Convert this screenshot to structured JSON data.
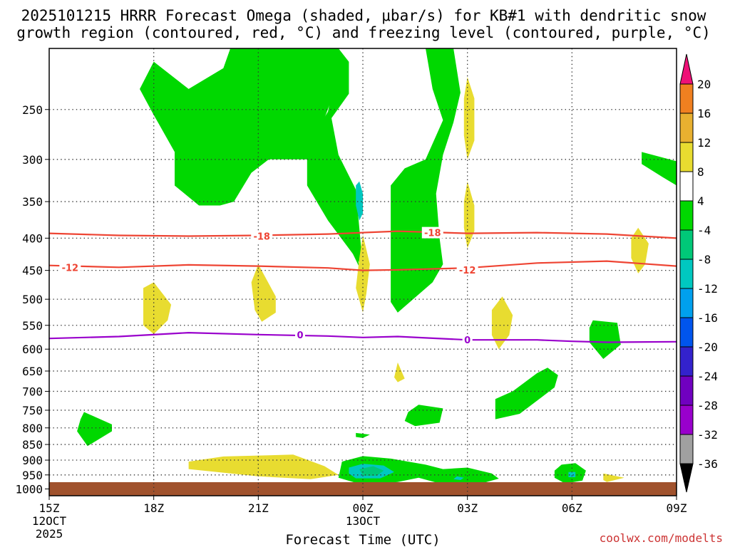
{
  "chart_data": {
    "type": "heatmap",
    "title_line1": "2025101215 HRRR Forecast Omega (shaded, μbar/s) for KB#1 with dendritic snow",
    "title_line2": "growth region (contoured, red, °C) and freezing level (contoured, purple, °C)",
    "xlabel": "Forecast Time (UTC)",
    "credit": "coolwx.com/modelts",
    "x_ticks": [
      {
        "hour": 0,
        "label": "15Z",
        "sub": "12OCT",
        "sub2": "2025"
      },
      {
        "hour": 3,
        "label": "18Z"
      },
      {
        "hour": 6,
        "label": "21Z"
      },
      {
        "hour": 9,
        "label": "00Z",
        "sub": "13OCT"
      },
      {
        "hour": 12,
        "label": "03Z"
      },
      {
        "hour": 15,
        "label": "06Z"
      },
      {
        "hour": 18,
        "label": "09Z"
      }
    ],
    "xlim": [
      0,
      18
    ],
    "ylim": [
      1025,
      200
    ],
    "y_scale": "log",
    "y_ticks": [
      250,
      300,
      350,
      400,
      450,
      500,
      550,
      600,
      650,
      700,
      750,
      800,
      850,
      900,
      950,
      1000
    ],
    "grid": true,
    "colorbar": {
      "levels": [
        -36,
        -32,
        -28,
        -24,
        -20,
        -16,
        -12,
        -8,
        -4,
        4,
        8,
        12,
        16,
        20
      ],
      "colors": [
        "#a0a0a0",
        "#9900cc",
        "#7000c0",
        "#3322cc",
        "#0055ee",
        "#00a0ee",
        "#00c8c0",
        "#00c878",
        "#00d800",
        "#ffffff",
        "#e8dc30",
        "#e8b030",
        "#f08020",
        "#f04040"
      ],
      "under_color": "#000000",
      "over_color": "#ee1177"
    },
    "contours": [
      {
        "name": "dendritic-18",
        "label": "-18",
        "color": "#ee4433",
        "points": [
          [
            0,
            393
          ],
          [
            2,
            396
          ],
          [
            4,
            397
          ],
          [
            6,
            396
          ],
          [
            8,
            394
          ],
          [
            10,
            390
          ],
          [
            12,
            393
          ],
          [
            14,
            392
          ],
          [
            16,
            394
          ],
          [
            18,
            400
          ]
        ],
        "label_at": [
          [
            6.1,
            397
          ],
          [
            11.0,
            392
          ]
        ]
      },
      {
        "name": "dendritic-12",
        "label": "-12",
        "color": "#ee4433",
        "points": [
          [
            0,
            442
          ],
          [
            2,
            445
          ],
          [
            4,
            441
          ],
          [
            6,
            443
          ],
          [
            8,
            446
          ],
          [
            9,
            450
          ],
          [
            10,
            449
          ],
          [
            12,
            446
          ],
          [
            14,
            438
          ],
          [
            16,
            435
          ],
          [
            18,
            443
          ]
        ],
        "label_at": [
          [
            0.6,
            445
          ],
          [
            12.0,
            449
          ]
        ]
      },
      {
        "name": "freezing-0",
        "label": "0",
        "color": "#9900cc",
        "points": [
          [
            0,
            577
          ],
          [
            2,
            573
          ],
          [
            4,
            565
          ],
          [
            6,
            569
          ],
          [
            8,
            572
          ],
          [
            9,
            575
          ],
          [
            10,
            573
          ],
          [
            12,
            580
          ],
          [
            14,
            580
          ],
          [
            15,
            583
          ],
          [
            16,
            585
          ],
          [
            18,
            584
          ]
        ],
        "label_at": [
          [
            7.2,
            569
          ],
          [
            12.0,
            580
          ]
        ]
      }
    ],
    "regions": [
      {
        "name": "omega-region",
        "color": "#00d800",
        "points": [
          [
            2.6,
            232
          ],
          [
            3.0,
            210
          ],
          [
            4.0,
            232
          ],
          [
            5.0,
            215
          ],
          [
            5.2,
            200
          ],
          [
            7.3,
            200
          ],
          [
            8.2,
            220
          ],
          [
            8.0,
            252
          ],
          [
            7.4,
            285
          ],
          [
            7.4,
            330
          ],
          [
            8.0,
            375
          ],
          [
            9.0,
            445
          ],
          [
            8.8,
            335
          ],
          [
            8.3,
            295
          ],
          [
            8.1,
            258
          ],
          [
            8.6,
            236
          ],
          [
            8.6,
            210
          ],
          [
            8.3,
            200
          ],
          [
            6.5,
            200
          ],
          [
            6.5,
            235
          ],
          [
            5.8,
            295
          ],
          [
            5.6,
            305
          ],
          [
            4.3,
            355
          ],
          [
            3.6,
            330
          ],
          [
            3.6,
            290
          ],
          [
            3.0,
            255
          ]
        ]
      },
      {
        "name": "omega-region",
        "color": "#00d800",
        "points": [
          [
            2.6,
            232
          ],
          [
            3.0,
            210
          ],
          [
            4.0,
            232
          ],
          [
            5.0,
            215
          ],
          [
            5.2,
            200
          ],
          [
            8.3,
            200
          ],
          [
            8.3,
            225
          ],
          [
            7.9,
            258
          ],
          [
            7.6,
            290
          ],
          [
            7.7,
            332
          ],
          [
            8.3,
            380
          ],
          [
            8.9,
            445
          ],
          [
            8.6,
            360
          ],
          [
            8.0,
            312
          ],
          [
            7.4,
            300
          ],
          [
            6.3,
            300
          ],
          [
            5.8,
            315
          ],
          [
            5.3,
            350
          ],
          [
            4.9,
            355
          ],
          [
            4.3,
            355
          ],
          [
            3.6,
            330
          ],
          [
            3.6,
            292
          ],
          [
            3.0,
            255
          ]
        ]
      },
      {
        "name": "omega-region",
        "color": "#00d800",
        "points": [
          [
            10.8,
            200
          ],
          [
            11.6,
            200
          ],
          [
            11.8,
            235
          ],
          [
            11.6,
            262
          ],
          [
            11.3,
            295
          ],
          [
            11.1,
            340
          ],
          [
            11.2,
            400
          ],
          [
            11.3,
            440
          ],
          [
            11.0,
            470
          ],
          [
            10.0,
            525
          ],
          [
            9.8,
            505
          ],
          [
            9.8,
            400
          ],
          [
            9.8,
            330
          ],
          [
            10.2,
            310
          ],
          [
            10.8,
            300
          ],
          [
            11.3,
            260
          ],
          [
            11.0,
            232
          ]
        ]
      },
      {
        "name": "omega-region",
        "color": "#00c8c0",
        "points": [
          [
            8.9,
            325
          ],
          [
            9.0,
            340
          ],
          [
            9.0,
            365
          ],
          [
            8.9,
            375
          ],
          [
            8.8,
            355
          ],
          [
            8.8,
            330
          ]
        ]
      },
      {
        "name": "omega-region",
        "color": "#e8dc30",
        "points": [
          [
            12.0,
            222
          ],
          [
            12.2,
            240
          ],
          [
            12.2,
            280
          ],
          [
            12.0,
            300
          ],
          [
            11.9,
            275
          ],
          [
            11.9,
            240
          ]
        ]
      },
      {
        "name": "omega-region",
        "color": "#e8dc30",
        "points": [
          [
            12.0,
            325
          ],
          [
            12.2,
            355
          ],
          [
            12.2,
            390
          ],
          [
            12.0,
            415
          ],
          [
            11.9,
            385
          ],
          [
            11.9,
            350
          ]
        ]
      },
      {
        "name": "omega-region",
        "color": "#00d800",
        "points": [
          [
            17.0,
            292
          ],
          [
            18.0,
            302
          ],
          [
            18.0,
            330
          ],
          [
            17.6,
            320
          ],
          [
            17.0,
            305
          ]
        ]
      },
      {
        "name": "omega-region",
        "color": "#e8dc30",
        "points": [
          [
            16.9,
            385
          ],
          [
            17.2,
            408
          ],
          [
            17.1,
            440
          ],
          [
            16.9,
            455
          ],
          [
            16.7,
            430
          ],
          [
            16.7,
            400
          ]
        ]
      },
      {
        "name": "omega-region",
        "color": "#e8dc30",
        "points": [
          [
            3.0,
            470
          ],
          [
            3.5,
            510
          ],
          [
            3.4,
            540
          ],
          [
            3.0,
            568
          ],
          [
            2.7,
            550
          ],
          [
            2.7,
            480
          ]
        ]
      },
      {
        "name": "omega-region",
        "color": "#e8dc30",
        "points": [
          [
            6.0,
            440
          ],
          [
            6.5,
            495
          ],
          [
            6.5,
            525
          ],
          [
            6.1,
            543
          ],
          [
            5.9,
            520
          ],
          [
            5.8,
            470
          ]
        ]
      },
      {
        "name": "omega-region",
        "color": "#e8dc30",
        "points": [
          [
            9.0,
            395
          ],
          [
            9.2,
            440
          ],
          [
            9.1,
            490
          ],
          [
            9.0,
            525
          ],
          [
            8.8,
            480
          ],
          [
            8.9,
            430
          ]
        ]
      },
      {
        "name": "omega-region",
        "color": "#e8dc30",
        "points": [
          [
            13.0,
            495
          ],
          [
            13.3,
            530
          ],
          [
            13.2,
            570
          ],
          [
            12.9,
            600
          ],
          [
            12.7,
            570
          ],
          [
            12.7,
            520
          ]
        ]
      },
      {
        "name": "omega-region",
        "color": "#00d800",
        "points": [
          [
            15.6,
            540
          ],
          [
            16.3,
            545
          ],
          [
            16.4,
            590
          ],
          [
            15.9,
            622
          ],
          [
            15.5,
            585
          ],
          [
            15.5,
            555
          ]
        ]
      },
      {
        "name": "omega-region",
        "color": "#e8dc30",
        "points": [
          [
            10.0,
            630
          ],
          [
            10.2,
            668
          ],
          [
            10.0,
            677
          ],
          [
            9.9,
            665
          ]
        ]
      },
      {
        "name": "omega-region",
        "color": "#00d800",
        "points": [
          [
            14.3,
            642
          ],
          [
            14.6,
            660
          ],
          [
            14.5,
            690
          ],
          [
            13.5,
            760
          ],
          [
            12.8,
            775
          ],
          [
            12.8,
            720
          ],
          [
            13.3,
            700
          ],
          [
            14.0,
            655
          ]
        ]
      },
      {
        "name": "omega-region",
        "color": "#00d800",
        "points": [
          [
            10.6,
            735
          ],
          [
            11.3,
            745
          ],
          [
            11.2,
            785
          ],
          [
            10.5,
            795
          ],
          [
            10.2,
            780
          ],
          [
            10.3,
            755
          ]
        ]
      },
      {
        "name": "omega-region",
        "color": "#00d800",
        "points": [
          [
            1.0,
            755
          ],
          [
            1.8,
            790
          ],
          [
            1.8,
            810
          ],
          [
            1.1,
            855
          ],
          [
            0.8,
            810
          ],
          [
            0.9,
            775
          ]
        ]
      },
      {
        "name": "omega-region",
        "color": "#00d800",
        "points": [
          [
            8.8,
            815
          ],
          [
            9.2,
            820
          ],
          [
            9.0,
            830
          ],
          [
            8.8,
            827
          ]
        ]
      },
      {
        "name": "omega-region",
        "color": "#e8dc30",
        "points": [
          [
            4.0,
            905
          ],
          [
            5.0,
            888
          ],
          [
            7.0,
            882
          ],
          [
            7.9,
            920
          ],
          [
            8.3,
            950
          ],
          [
            7.5,
            965
          ],
          [
            6.0,
            955
          ],
          [
            4.0,
            930
          ]
        ]
      },
      {
        "name": "omega-region",
        "color": "#00d800",
        "points": [
          [
            8.4,
            905
          ],
          [
            9.0,
            887
          ],
          [
            9.8,
            895
          ],
          [
            10.8,
            915
          ],
          [
            11.3,
            930
          ],
          [
            12.0,
            925
          ],
          [
            12.7,
            945
          ],
          [
            12.9,
            963
          ],
          [
            12.2,
            987
          ],
          [
            11.2,
            980
          ],
          [
            10.6,
            960
          ],
          [
            10.0,
            975
          ],
          [
            9.0,
            985
          ],
          [
            8.3,
            960
          ]
        ]
      },
      {
        "name": "omega-region",
        "color": "#00c8c0",
        "points": [
          [
            8.6,
            925
          ],
          [
            9.0,
            912
          ],
          [
            9.6,
            918
          ],
          [
            9.9,
            940
          ],
          [
            9.5,
            962
          ],
          [
            8.8,
            962
          ],
          [
            8.6,
            945
          ]
        ]
      },
      {
        "name": "omega-region",
        "color": "#00c878",
        "points": [
          [
            8.9,
            930
          ],
          [
            9.3,
            920
          ],
          [
            9.6,
            935
          ],
          [
            9.4,
            953
          ],
          [
            9.0,
            953
          ]
        ]
      },
      {
        "name": "omega-region",
        "color": "#00c8c0",
        "points": [
          [
            11.7,
            955
          ],
          [
            11.9,
            960
          ],
          [
            11.8,
            968
          ],
          [
            11.6,
            965
          ]
        ]
      },
      {
        "name": "omega-region",
        "color": "#00d800",
        "points": [
          [
            14.7,
            915
          ],
          [
            15.1,
            910
          ],
          [
            15.4,
            935
          ],
          [
            15.3,
            970
          ],
          [
            14.8,
            980
          ],
          [
            14.5,
            960
          ],
          [
            14.5,
            935
          ]
        ]
      },
      {
        "name": "omega-region",
        "color": "#00c8c0",
        "points": [
          [
            14.9,
            940
          ],
          [
            15.1,
            940
          ],
          [
            15.1,
            958
          ],
          [
            14.9,
            958
          ]
        ]
      },
      {
        "name": "omega-region",
        "color": "#e8dc30",
        "points": [
          [
            15.9,
            945
          ],
          [
            16.5,
            960
          ],
          [
            16.0,
            975
          ],
          [
            15.9,
            968
          ]
        ]
      }
    ]
  }
}
